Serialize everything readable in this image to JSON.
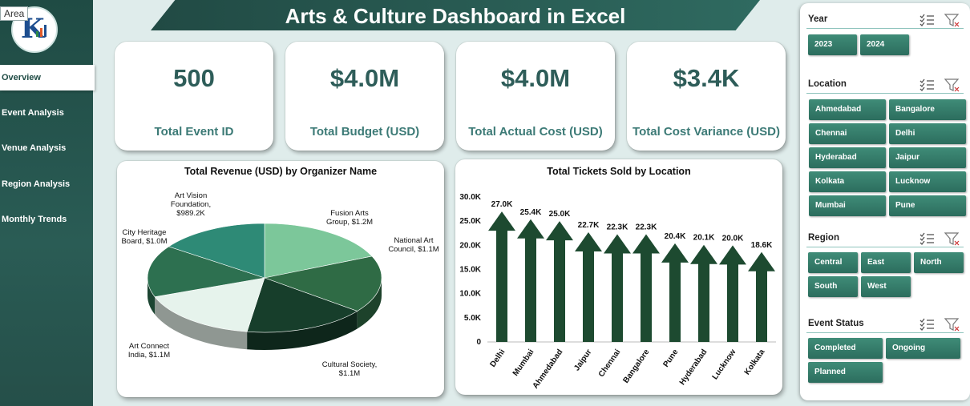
{
  "header": {
    "title": "Arts & Culture Dashboard in Excel",
    "area_tag": "Area"
  },
  "sidebar": {
    "items": [
      {
        "label": "Overview",
        "active": true
      },
      {
        "label": "Event Analysis"
      },
      {
        "label": "Venue Analysis"
      },
      {
        "label": "Region Analysis"
      },
      {
        "label": "Monthly Trends"
      }
    ]
  },
  "kpis": [
    {
      "value": "500",
      "label": "Total Event ID"
    },
    {
      "value": "$4.0M",
      "label": "Total Budget (USD)"
    },
    {
      "value": "$4.0M",
      "label": "Total Actual Cost (USD)"
    },
    {
      "value": "$3.4K",
      "label": "Total Cost Variance (USD)"
    }
  ],
  "chart_data": [
    {
      "type": "pie",
      "title": "Total Revenue (USD) by Organizer Name",
      "slices": [
        {
          "name": "Fusion Arts Group",
          "value": 1.2,
          "label": "Fusion Arts Group, $1.2M",
          "color": "#7cc79a"
        },
        {
          "name": "National Art Council",
          "value": 1.1,
          "label": "National Art Council, $1.1M",
          "color": "#2f6b45"
        },
        {
          "name": "Cultural Society",
          "value": 1.1,
          "label": "Cultural Society, $1.1M",
          "color": "#173e2b"
        },
        {
          "name": "Art Connect India",
          "value": 1.1,
          "label": "Art Connect India, $1.1M",
          "color": "#e6f3ec"
        },
        {
          "name": "City Heritage Board",
          "value": 1.0,
          "label": "City Heritage Board, $1.0M",
          "color": "#2d7050"
        },
        {
          "name": "Art Vision Foundation",
          "value": 0.9892,
          "label": "Art Vision Foundation, $989.2K",
          "color": "#2e8a76"
        }
      ]
    },
    {
      "type": "bar",
      "title": "Total Tickets Sold by Location",
      "categories": [
        "Delhi",
        "Mumbai",
        "Ahmedabad",
        "Jaipur",
        "Chennai",
        "Bangalore",
        "Pune",
        "Hyderabad",
        "Lucknow",
        "Kolkata"
      ],
      "values": [
        27.0,
        25.4,
        25.0,
        22.7,
        22.3,
        22.3,
        20.4,
        20.1,
        20.0,
        18.6
      ],
      "data_labels": [
        "27.0K",
        "25.4K",
        "25.0K",
        "22.7K",
        "22.3K",
        "22.3K",
        "20.4K",
        "20.1K",
        "20.0K",
        "18.6K"
      ],
      "y_ticks": [
        "0",
        "5.0K",
        "10.0K",
        "15.0K",
        "20.0K",
        "25.0K",
        "30.0K"
      ],
      "ylim": [
        0,
        30
      ],
      "bar_color": "#1d4a30"
    }
  ],
  "filters": {
    "year": {
      "title": "Year",
      "options": [
        "2023",
        "2024"
      ]
    },
    "location": {
      "title": "Location",
      "options": [
        "Ahmedabad",
        "Bangalore",
        "Chennai",
        "Delhi",
        "Hyderabad",
        "Jaipur",
        "Kolkata",
        "Lucknow",
        "Mumbai",
        "Pune"
      ]
    },
    "region": {
      "title": "Region",
      "options": [
        "Central",
        "East",
        "North",
        "South",
        "West"
      ]
    },
    "event_status": {
      "title": "Event Status",
      "options": [
        "Completed",
        "Ongoing",
        "Planned"
      ]
    }
  },
  "colors": {
    "sidebar": "#1f4b44",
    "accent": "#2e5d59",
    "chip": "#2f7563"
  }
}
